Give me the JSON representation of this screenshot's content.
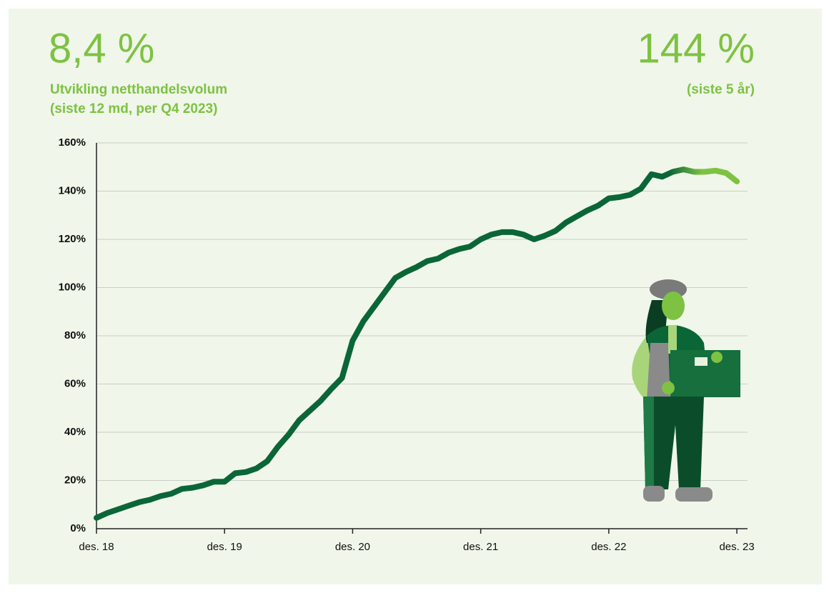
{
  "kpis": [
    {
      "value": "8,4 %",
      "lines": [
        "Utvikling netthandelsvolum",
        "(siste 12 md, per Q4 2023)"
      ]
    },
    {
      "value": "144 %",
      "lines": [
        "(siste 5 år)"
      ]
    }
  ],
  "chart_data": {
    "type": "line",
    "x": [
      0,
      1,
      2,
      3,
      4,
      5,
      6,
      7,
      8,
      9,
      10,
      11,
      12,
      13,
      14,
      15,
      16,
      17,
      18,
      19,
      20,
      21,
      22,
      23,
      24,
      25,
      26,
      27,
      28,
      29,
      30,
      31,
      32,
      33,
      34,
      35,
      36,
      37,
      38,
      39,
      40,
      41,
      42,
      43,
      44,
      45,
      46,
      47,
      48,
      49,
      50,
      51,
      52,
      53,
      54,
      55,
      56,
      57,
      58,
      59,
      60
    ],
    "values": [
      4.5,
      6.5,
      8,
      9.5,
      11,
      12,
      13.5,
      14.5,
      16.5,
      17,
      18,
      19.5,
      19.5,
      23,
      23.5,
      25,
      28,
      34,
      39,
      45,
      49,
      53,
      58,
      62.5,
      78,
      86,
      92,
      98,
      104,
      106.5,
      108.5,
      111,
      112,
      114.5,
      116,
      117,
      120,
      122,
      123,
      123,
      122,
      120,
      121.5,
      123.5,
      127,
      129.5,
      132,
      134,
      137,
      137.5,
      138.5,
      141,
      147,
      146,
      148,
      149,
      148,
      148,
      148.5,
      147.5,
      144
    ],
    "color": "#0b6637",
    "end_color": "#7dc242",
    "xlim": [
      0,
      61
    ],
    "xticks": [
      {
        "value": 0,
        "label": "des. 18"
      },
      {
        "value": 12,
        "label": "des. 19"
      },
      {
        "value": 24,
        "label": "des. 20"
      },
      {
        "value": 36,
        "label": "des. 21"
      },
      {
        "value": 48,
        "label": "des. 22"
      },
      {
        "value": 60,
        "label": "des. 23"
      }
    ],
    "ylim": [
      0,
      160
    ],
    "yticks": [
      {
        "value": 0,
        "label": "0%"
      },
      {
        "value": 20,
        "label": "20%"
      },
      {
        "value": 40,
        "label": "40%"
      },
      {
        "value": 60,
        "label": "60%"
      },
      {
        "value": 80,
        "label": "80%"
      },
      {
        "value": 100,
        "label": "100%"
      },
      {
        "value": 120,
        "label": "120%"
      },
      {
        "value": 140,
        "label": "140%"
      },
      {
        "value": 160,
        "label": "160%"
      }
    ],
    "grid": true
  }
}
